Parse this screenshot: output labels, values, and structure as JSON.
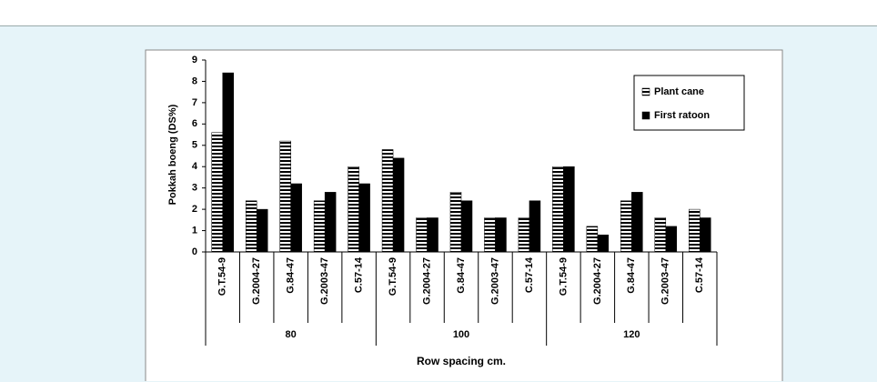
{
  "chart_data": {
    "type": "bar",
    "y_label": "Pokkah boeng (DS%)",
    "x_label": "Row spacing cm.",
    "categories": [
      "G.T.54-9",
      "G.2004-27",
      "G.84-47",
      "G.2003-47",
      "C.57-14",
      "G.T.54-9",
      "G.2004-27",
      "G.84-47",
      "G.2003-47",
      "C.57-14",
      "G.T.54-9",
      "G.2004-27",
      "G.84-47",
      "G.2003-47",
      "C.57-14"
    ],
    "groups": [
      "80",
      "100",
      "120"
    ],
    "series": [
      {
        "name": "Plant cane",
        "color": "#000000",
        "pattern": "horizontal-stripes",
        "values": [
          5.6,
          2.4,
          5.2,
          2.4,
          4.0,
          4.8,
          1.6,
          2.8,
          1.6,
          1.6,
          4.0,
          1.2,
          2.4,
          1.6,
          2.0
        ]
      },
      {
        "name": "First ratoon",
        "color": "#000000",
        "pattern": "solid",
        "values": [
          8.4,
          2.0,
          3.2,
          2.8,
          3.2,
          4.4,
          1.6,
          2.4,
          1.6,
          2.4,
          4.0,
          0.8,
          2.8,
          1.2,
          1.6
        ]
      }
    ],
    "ylim": [
      0,
      9
    ],
    "yticks": [
      0,
      1,
      2,
      3,
      4,
      5,
      6,
      7,
      8,
      9
    ],
    "grid": false,
    "legend": "top-right"
  }
}
